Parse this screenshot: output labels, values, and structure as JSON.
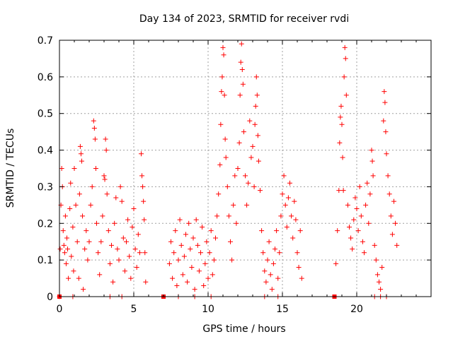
{
  "chart_data": {
    "type": "scatter",
    "title": "Day 134 of 2023, SRMTID for receiver rvdi",
    "xlabel": "GPS time / hours",
    "ylabel": "SRMTID / TECUs",
    "xlim": [
      0,
      25
    ],
    "ylim": [
      0,
      0.7
    ],
    "x_ticks": [
      0,
      5,
      10,
      15,
      20
    ],
    "x_tick_labels": [
      "0",
      "5",
      "10",
      "15",
      "20"
    ],
    "y_ticks": [
      0,
      0.1,
      0.2,
      0.3,
      0.4,
      0.5,
      0.6,
      0.7
    ],
    "y_tick_labels": [
      "0",
      "0.1",
      "0.2",
      "0.3",
      "0.4",
      "0.5",
      "0.6",
      "0.7"
    ],
    "grid": true,
    "marker": "+",
    "color": "#ff0000",
    "series": [
      {
        "name": "SRMTID",
        "points": [
          [
            0.05,
            0.13
          ],
          [
            0.1,
            0.25
          ],
          [
            0.15,
            0.35
          ],
          [
            0.2,
            0.3
          ],
          [
            0.25,
            0.18
          ],
          [
            0.3,
            0.14
          ],
          [
            0.35,
            0.12
          ],
          [
            0.4,
            0.22
          ],
          [
            0.45,
            0.09
          ],
          [
            0.5,
            0.16
          ],
          [
            0.55,
            0.13
          ],
          [
            0.6,
            0.05
          ],
          [
            0.7,
            0.24
          ],
          [
            0.75,
            0.31
          ],
          [
            0.8,
            0.11
          ],
          [
            0.9,
            0.19
          ],
          [
            0.95,
            0.07
          ],
          [
            1.0,
            0.35
          ],
          [
            1.1,
            0.25
          ],
          [
            1.2,
            0.15
          ],
          [
            1.3,
            0.05
          ],
          [
            1.35,
            0.28
          ],
          [
            1.4,
            0.41
          ],
          [
            1.45,
            0.39
          ],
          [
            1.5,
            0.37
          ],
          [
            1.55,
            0.22
          ],
          [
            1.6,
            0.02
          ],
          [
            1.7,
            0.13
          ],
          [
            1.8,
            0.18
          ],
          [
            1.9,
            0.1
          ],
          [
            2.0,
            0.15
          ],
          [
            2.1,
            0.25
          ],
          [
            2.2,
            0.3
          ],
          [
            2.3,
            0.48
          ],
          [
            2.35,
            0.46
          ],
          [
            2.4,
            0.43
          ],
          [
            2.45,
            0.35
          ],
          [
            2.5,
            0.2
          ],
          [
            2.6,
            0.12
          ],
          [
            2.7,
            0.06
          ],
          [
            2.8,
            0.15
          ],
          [
            2.9,
            0.22
          ],
          [
            3.0,
            0.33
          ],
          [
            3.05,
            0.32
          ],
          [
            3.1,
            0.43
          ],
          [
            3.15,
            0.4
          ],
          [
            3.2,
            0.28
          ],
          [
            3.3,
            0.18
          ],
          [
            3.4,
            0.09
          ],
          [
            3.5,
            0.14
          ],
          [
            3.6,
            0.04
          ],
          [
            3.7,
            0.2
          ],
          [
            3.8,
            0.27
          ],
          [
            3.9,
            0.13
          ],
          [
            4.0,
            0.1
          ],
          [
            4.1,
            0.3
          ],
          [
            4.2,
            0.26
          ],
          [
            4.3,
            0.16
          ],
          [
            4.4,
            0.07
          ],
          [
            4.5,
            0.15
          ],
          [
            4.6,
            0.21
          ],
          [
            4.7,
            0.11
          ],
          [
            4.8,
            0.05
          ],
          [
            4.9,
            0.19
          ],
          [
            5.0,
            0.24
          ],
          [
            5.1,
            0.13
          ],
          [
            5.2,
            0.08
          ],
          [
            5.3,
            0.17
          ],
          [
            5.4,
            0.12
          ],
          [
            5.5,
            0.39
          ],
          [
            5.55,
            0.33
          ],
          [
            5.6,
            0.3
          ],
          [
            5.65,
            0.26
          ],
          [
            5.7,
            0.21
          ],
          [
            5.75,
            0.12
          ],
          [
            5.8,
            0.04
          ],
          [
            0.0,
            0.0
          ],
          [
            0.9,
            0.0
          ],
          [
            3.4,
            0.0
          ],
          [
            4.2,
            0.0
          ],
          [
            7.4,
            0.09
          ],
          [
            7.5,
            0.15
          ],
          [
            7.6,
            0.05
          ],
          [
            7.7,
            0.12
          ],
          [
            7.8,
            0.18
          ],
          [
            7.9,
            0.03
          ],
          [
            8.0,
            0.1
          ],
          [
            8.1,
            0.21
          ],
          [
            8.2,
            0.14
          ],
          [
            8.3,
            0.06
          ],
          [
            8.4,
            0.11
          ],
          [
            8.5,
            0.17
          ],
          [
            8.6,
            0.04
          ],
          [
            8.7,
            0.2
          ],
          [
            8.8,
            0.13
          ],
          [
            8.9,
            0.08
          ],
          [
            9.0,
            0.16
          ],
          [
            9.1,
            0.02
          ],
          [
            9.2,
            0.21
          ],
          [
            9.3,
            0.14
          ],
          [
            9.4,
            0.07
          ],
          [
            9.5,
            0.12
          ],
          [
            9.6,
            0.19
          ],
          [
            9.7,
            0.03
          ],
          [
            9.8,
            0.09
          ],
          [
            9.9,
            0.15
          ],
          [
            10.0,
            0.05
          ],
          [
            10.1,
            0.12
          ],
          [
            10.2,
            0.18
          ],
          [
            10.3,
            0.06
          ],
          [
            10.4,
            0.1
          ],
          [
            10.5,
            0.16
          ],
          [
            10.6,
            0.22
          ],
          [
            10.7,
            0.28
          ],
          [
            10.8,
            0.36
          ],
          [
            10.85,
            0.47
          ],
          [
            10.9,
            0.56
          ],
          [
            10.95,
            0.6
          ],
          [
            11.0,
            0.68
          ],
          [
            11.05,
            0.66
          ],
          [
            11.1,
            0.55
          ],
          [
            11.15,
            0.43
          ],
          [
            11.2,
            0.38
          ],
          [
            11.3,
            0.3
          ],
          [
            11.4,
            0.22
          ],
          [
            11.5,
            0.15
          ],
          [
            11.6,
            0.1
          ],
          [
            11.7,
            0.25
          ],
          [
            11.8,
            0.33
          ],
          [
            11.9,
            0.2
          ],
          [
            12.0,
            0.35
          ],
          [
            12.1,
            0.42
          ],
          [
            12.15,
            0.55
          ],
          [
            12.2,
            0.64
          ],
          [
            12.25,
            0.69
          ],
          [
            12.3,
            0.62
          ],
          [
            12.35,
            0.58
          ],
          [
            12.4,
            0.45
          ],
          [
            12.5,
            0.33
          ],
          [
            12.6,
            0.25
          ],
          [
            12.7,
            0.31
          ],
          [
            12.8,
            0.48
          ],
          [
            12.9,
            0.38
          ],
          [
            13.0,
            0.41
          ],
          [
            13.1,
            0.3
          ],
          [
            13.15,
            0.47
          ],
          [
            13.2,
            0.52
          ],
          [
            13.25,
            0.6
          ],
          [
            13.3,
            0.55
          ],
          [
            13.35,
            0.44
          ],
          [
            13.4,
            0.37
          ],
          [
            13.5,
            0.29
          ],
          [
            13.6,
            0.18
          ],
          [
            13.7,
            0.12
          ],
          [
            13.8,
            0.07
          ],
          [
            13.9,
            0.04
          ],
          [
            14.0,
            0.1
          ],
          [
            14.1,
            0.15
          ],
          [
            14.2,
            0.06
          ],
          [
            14.3,
            0.02
          ],
          [
            14.4,
            0.09
          ],
          [
            14.5,
            0.13
          ],
          [
            14.6,
            0.18
          ],
          [
            14.7,
            0.05
          ],
          [
            14.8,
            0.12
          ],
          [
            14.9,
            0.22
          ],
          [
            15.0,
            0.28
          ],
          [
            15.1,
            0.33
          ],
          [
            15.2,
            0.25
          ],
          [
            15.3,
            0.19
          ],
          [
            15.4,
            0.27
          ],
          [
            15.5,
            0.31
          ],
          [
            15.6,
            0.22
          ],
          [
            15.7,
            0.16
          ],
          [
            15.8,
            0.26
          ],
          [
            15.9,
            0.21
          ],
          [
            16.0,
            0.12
          ],
          [
            16.1,
            0.08
          ],
          [
            16.2,
            0.18
          ],
          [
            16.3,
            0.05
          ],
          [
            8.0,
            0.0
          ],
          [
            9.1,
            0.0
          ],
          [
            10.2,
            0.0
          ],
          [
            13.8,
            0.0
          ],
          [
            14.7,
            0.0
          ],
          [
            18.6,
            0.09
          ],
          [
            18.7,
            0.18
          ],
          [
            18.8,
            0.29
          ],
          [
            18.85,
            0.42
          ],
          [
            18.9,
            0.49
          ],
          [
            18.95,
            0.52
          ],
          [
            19.0,
            0.47
          ],
          [
            19.05,
            0.38
          ],
          [
            19.1,
            0.29
          ],
          [
            19.15,
            0.6
          ],
          [
            19.2,
            0.68
          ],
          [
            19.25,
            0.65
          ],
          [
            19.3,
            0.55
          ],
          [
            19.4,
            0.25
          ],
          [
            19.5,
            0.19
          ],
          [
            19.6,
            0.16
          ],
          [
            19.7,
            0.13
          ],
          [
            19.8,
            0.21
          ],
          [
            19.9,
            0.27
          ],
          [
            20.0,
            0.24
          ],
          [
            20.1,
            0.18
          ],
          [
            20.2,
            0.3
          ],
          [
            20.3,
            0.22
          ],
          [
            20.4,
            0.15
          ],
          [
            20.5,
            0.12
          ],
          [
            20.6,
            0.25
          ],
          [
            20.7,
            0.31
          ],
          [
            20.8,
            0.2
          ],
          [
            20.9,
            0.28
          ],
          [
            21.0,
            0.4
          ],
          [
            21.05,
            0.37
          ],
          [
            21.1,
            0.33
          ],
          [
            21.2,
            0.14
          ],
          [
            21.3,
            0.1
          ],
          [
            21.4,
            0.06
          ],
          [
            21.5,
            0.04
          ],
          [
            21.6,
            0.02
          ],
          [
            21.7,
            0.08
          ],
          [
            21.8,
            0.48
          ],
          [
            21.85,
            0.56
          ],
          [
            21.9,
            0.53
          ],
          [
            21.95,
            0.45
          ],
          [
            22.0,
            0.39
          ],
          [
            22.1,
            0.33
          ],
          [
            22.2,
            0.28
          ],
          [
            22.3,
            0.22
          ],
          [
            22.4,
            0.17
          ],
          [
            22.5,
            0.26
          ],
          [
            22.6,
            0.2
          ],
          [
            22.7,
            0.14
          ],
          [
            21.2,
            0.0
          ],
          [
            21.6,
            0.0
          ],
          [
            22.0,
            0.0
          ]
        ]
      }
    ],
    "gap_markers_x": [
      0.0,
      7.0,
      18.5
    ]
  }
}
